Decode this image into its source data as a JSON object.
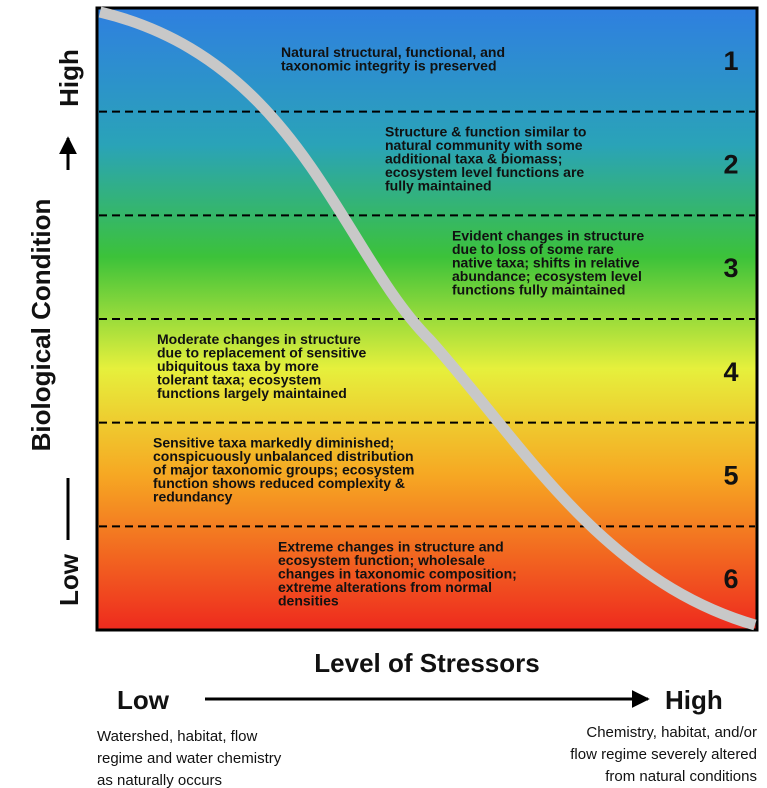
{
  "y_axis": {
    "high": "High",
    "title": "Biological Condition",
    "low": "Low"
  },
  "tiers": [
    {
      "number": "1",
      "lines": [
        "Natural structural, functional, and",
        "taxonomic integrity is preserved"
      ]
    },
    {
      "number": "2",
      "lines": [
        "Structure & function similar to",
        "natural community with some",
        "additional taxa & biomass;",
        "ecosystem level functions are",
        "fully maintained"
      ]
    },
    {
      "number": "3",
      "lines": [
        "Evident changes in structure",
        "due to loss of some rare",
        "native taxa; shifts in relative",
        "abundance; ecosystem level",
        "functions fully maintained"
      ]
    },
    {
      "number": "4",
      "lines": [
        "Moderate changes in structure",
        "due to replacement of sensitive",
        "ubiquitous taxa by more",
        "tolerant taxa; ecosystem",
        "functions largely maintained"
      ]
    },
    {
      "number": "5",
      "lines": [
        "Sensitive taxa markedly diminished;",
        "conspicuously unbalanced distribution",
        "of major taxonomic groups; ecosystem",
        "function shows reduced complexity &",
        "redundancy"
      ]
    },
    {
      "number": "6",
      "lines": [
        "Extreme changes in structure and",
        "ecosystem function; wholesale",
        "changes in taxonomic composition;",
        "extreme alterations from normal",
        "densities"
      ]
    }
  ],
  "x_axis": {
    "title": "Level of Stressors",
    "low": "Low",
    "high": "High",
    "low_description": [
      "Watershed, habitat, flow",
      "regime and water chemistry",
      "as naturally occurs"
    ],
    "high_description": [
      "Chemistry, habitat, and/or",
      "flow regime severely altered",
      "from natural conditions"
    ]
  }
}
